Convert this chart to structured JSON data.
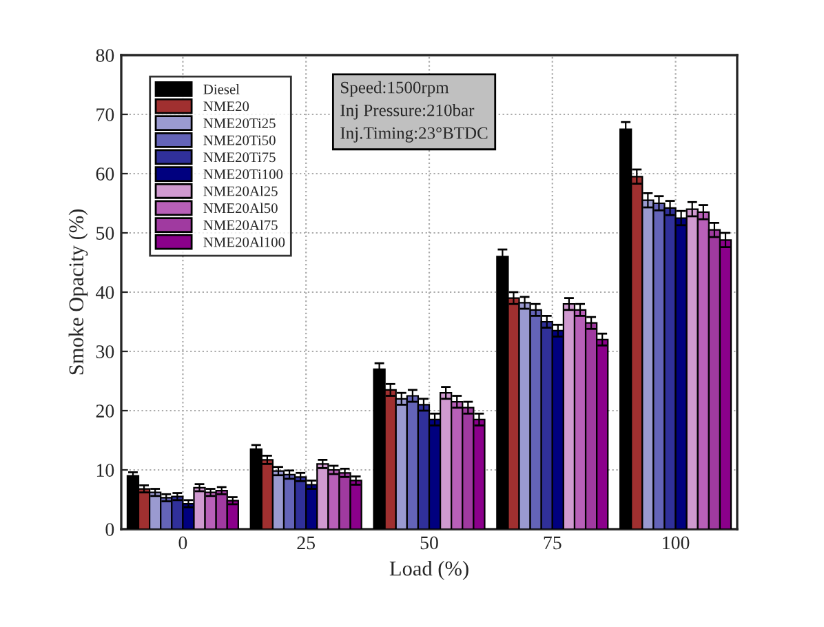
{
  "chart_data": {
    "type": "bar",
    "xlabel": "Load (%)",
    "ylabel": "Smoke Opacity (%)",
    "categories": [
      "0",
      "25",
      "50",
      "75",
      "100"
    ],
    "ylim": [
      0,
      80
    ],
    "yticks": [
      0,
      10,
      20,
      30,
      40,
      50,
      60,
      70,
      80
    ],
    "grid": true,
    "legend": "top left",
    "annotations": [
      "Speed:1500rpm",
      "Inj Pressure:210bar",
      "Inj.Timing:23°BTDC"
    ],
    "series": [
      {
        "name": "Diesel",
        "color": "#000000",
        "values": [
          9,
          13.5,
          27,
          46,
          67.5
        ],
        "errors": [
          0.6,
          0.7,
          1,
          1.2,
          1.2
        ]
      },
      {
        "name": "NME20",
        "color": "#a03030",
        "values": [
          6.8,
          11.7,
          23.5,
          39,
          59.5
        ],
        "errors": [
          0.6,
          0.7,
          1,
          1,
          1.2
        ]
      },
      {
        "name": "NME20Ti25",
        "color": "#9a9ad0",
        "values": [
          6.2,
          9.8,
          22,
          38.2,
          55.5
        ],
        "errors": [
          0.6,
          0.7,
          1,
          1,
          1.2
        ]
      },
      {
        "name": "NME20Ti50",
        "color": "#6464b8",
        "values": [
          5.3,
          9.2,
          22.5,
          37,
          55
        ],
        "errors": [
          0.6,
          0.7,
          1,
          1,
          1.2
        ]
      },
      {
        "name": "NME20Ti75",
        "color": "#30309a",
        "values": [
          5.5,
          8.8,
          21,
          35,
          54.2
        ],
        "errors": [
          0.6,
          0.7,
          1,
          1,
          1.2
        ]
      },
      {
        "name": "NME20Ti100",
        "color": "#00007f",
        "values": [
          4.3,
          7.5,
          18.5,
          33.5,
          52.5
        ],
        "errors": [
          0.6,
          0.7,
          1,
          1,
          1.2
        ]
      },
      {
        "name": "NME20Al25",
        "color": "#d09ad0",
        "values": [
          7,
          11,
          23,
          38,
          54
        ],
        "errors": [
          0.6,
          0.7,
          1,
          1,
          1.2
        ]
      },
      {
        "name": "NME20Al50",
        "color": "#b860b8",
        "values": [
          6.2,
          10,
          21.5,
          37,
          53.5
        ],
        "errors": [
          0.6,
          0.7,
          1,
          1,
          1.2
        ]
      },
      {
        "name": "NME20Al75",
        "color": "#a03aa0",
        "values": [
          6.5,
          9.5,
          20.5,
          34.8,
          50.5
        ],
        "errors": [
          0.6,
          0.7,
          1,
          1,
          1.2
        ]
      },
      {
        "name": "NME20Al100",
        "color": "#8b008b",
        "values": [
          4.8,
          8.2,
          18.5,
          32,
          48.8
        ],
        "errors": [
          0.6,
          0.7,
          1,
          1,
          1.2
        ]
      }
    ]
  }
}
